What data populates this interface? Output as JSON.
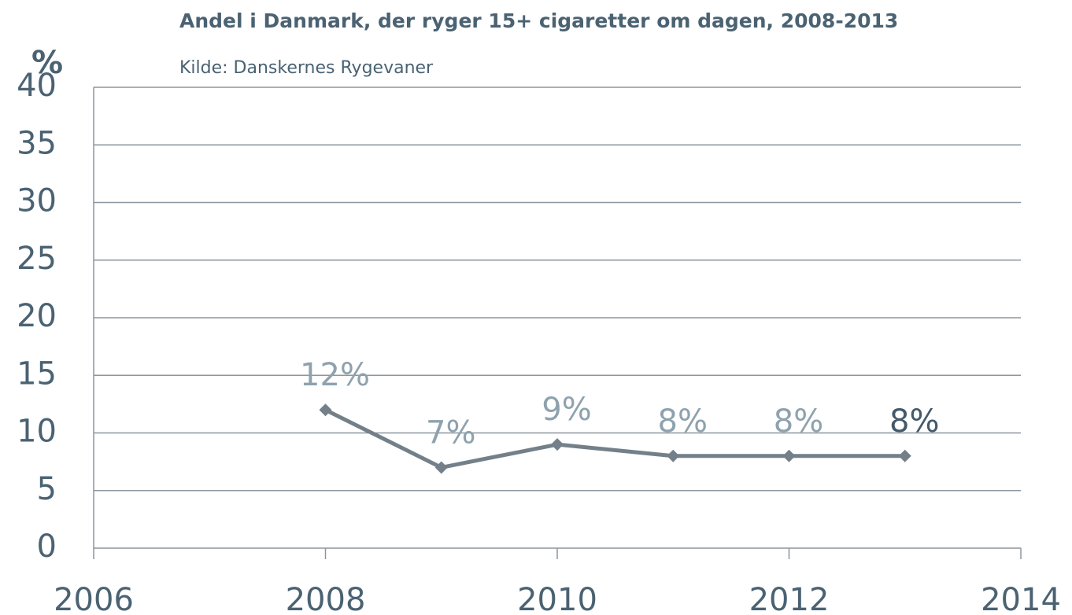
{
  "chart_data": {
    "type": "line",
    "title": "Andel i Danmark, der ryger 15+ cigaretter om dagen, 2008-2013",
    "subtitle": "Kilde: Danskernes Rygevaner",
    "y_label": "%",
    "x": [
      2008,
      2009,
      2010,
      2011,
      2012,
      2013
    ],
    "values": [
      12,
      7,
      9,
      8,
      8,
      8
    ],
    "value_labels": [
      "12%",
      "7%",
      "9%",
      "8%",
      "8%",
      "8%"
    ],
    "value_label_colors": [
      "#8ea2ae",
      "#8ea2ae",
      "#8ea2ae",
      "#8ea2ae",
      "#8ea2ae",
      "#44596a"
    ],
    "color": "#748089",
    "xlim": [
      2006,
      2014
    ],
    "xticks": [
      2006,
      2008,
      2010,
      2012,
      2014
    ],
    "ylim": [
      0,
      40
    ],
    "yticks": [
      0,
      5,
      10,
      15,
      20,
      25,
      30,
      35,
      40
    ],
    "grid": true
  }
}
